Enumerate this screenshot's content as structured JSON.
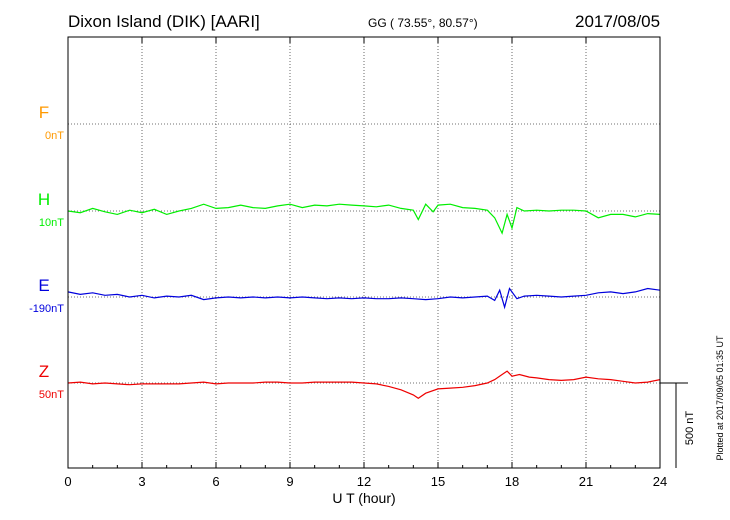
{
  "header": {
    "station": "Dixon Island (DIK)  [AARI]",
    "coords": "GG ( 73.55°,  80.57°)",
    "date": "2017/08/05"
  },
  "plotted_note": "Plotted at 2017/09/05 01:35 UT",
  "scale_label": "500 nT",
  "chart_data": {
    "type": "line",
    "xlabel": "U T (hour)",
    "xlim": [
      0,
      24
    ],
    "x_ticks": [
      "0",
      "3",
      "6",
      "9",
      "12",
      "15",
      "18",
      "21",
      "24"
    ],
    "series": [
      {
        "name": "F",
        "baseline": "0nT",
        "color": "#ff9900",
        "values": []
      },
      {
        "name": "H",
        "baseline": "10nT",
        "color": "#00ee00",
        "values": [
          [
            0,
            0
          ],
          [
            0.5,
            -10
          ],
          [
            1,
            15
          ],
          [
            1.5,
            -5
          ],
          [
            2,
            -20
          ],
          [
            2.5,
            5
          ],
          [
            3,
            -10
          ],
          [
            3.5,
            10
          ],
          [
            4,
            -20
          ],
          [
            4.5,
            0
          ],
          [
            5,
            15
          ],
          [
            5.5,
            40
          ],
          [
            6,
            15
          ],
          [
            6.5,
            20
          ],
          [
            7,
            35
          ],
          [
            7.5,
            20
          ],
          [
            8,
            15
          ],
          [
            8.5,
            30
          ],
          [
            9,
            40
          ],
          [
            9.5,
            20
          ],
          [
            10,
            35
          ],
          [
            10.5,
            30
          ],
          [
            11,
            40
          ],
          [
            11.5,
            35
          ],
          [
            12,
            30
          ],
          [
            12.5,
            25
          ],
          [
            13,
            35
          ],
          [
            13.5,
            15
          ],
          [
            14,
            5
          ],
          [
            14.2,
            -50
          ],
          [
            14.5,
            40
          ],
          [
            14.8,
            -5
          ],
          [
            15,
            35
          ],
          [
            15.5,
            40
          ],
          [
            16,
            20
          ],
          [
            16.5,
            15
          ],
          [
            17,
            5
          ],
          [
            17.3,
            -40
          ],
          [
            17.6,
            -130
          ],
          [
            17.8,
            -20
          ],
          [
            18,
            -100
          ],
          [
            18.2,
            20
          ],
          [
            18.5,
            0
          ],
          [
            19,
            5
          ],
          [
            19.5,
            0
          ],
          [
            20,
            5
          ],
          [
            20.5,
            5
          ],
          [
            21,
            0
          ],
          [
            21.5,
            -40
          ],
          [
            22,
            -20
          ],
          [
            22.5,
            -20
          ],
          [
            23,
            -35
          ],
          [
            23.5,
            -15
          ],
          [
            24,
            -20
          ]
        ]
      },
      {
        "name": "E",
        "baseline": "-190nT",
        "color": "#0000dd",
        "values": [
          [
            0,
            30
          ],
          [
            0.5,
            15
          ],
          [
            1,
            25
          ],
          [
            1.5,
            10
          ],
          [
            2,
            15
          ],
          [
            2.5,
            0
          ],
          [
            3,
            10
          ],
          [
            3.5,
            -5
          ],
          [
            4,
            5
          ],
          [
            4.5,
            0
          ],
          [
            5,
            10
          ],
          [
            5.5,
            -15
          ],
          [
            6,
            -5
          ],
          [
            6.5,
            0
          ],
          [
            7,
            -5
          ],
          [
            7.5,
            0
          ],
          [
            8,
            -5
          ],
          [
            8.5,
            0
          ],
          [
            9,
            -5
          ],
          [
            9.5,
            0
          ],
          [
            10,
            -5
          ],
          [
            10.5,
            -10
          ],
          [
            11,
            -5
          ],
          [
            11.5,
            -10
          ],
          [
            12,
            -5
          ],
          [
            12.5,
            -10
          ],
          [
            13,
            -10
          ],
          [
            13.5,
            -5
          ],
          [
            14,
            -10
          ],
          [
            14.5,
            -15
          ],
          [
            15,
            -10
          ],
          [
            15.5,
            0
          ],
          [
            16,
            -5
          ],
          [
            16.5,
            0
          ],
          [
            17,
            5
          ],
          [
            17.3,
            -20
          ],
          [
            17.5,
            40
          ],
          [
            17.7,
            -60
          ],
          [
            17.9,
            50
          ],
          [
            18.2,
            -10
          ],
          [
            18.5,
            5
          ],
          [
            19,
            10
          ],
          [
            19.5,
            5
          ],
          [
            20,
            0
          ],
          [
            20.5,
            5
          ],
          [
            21,
            10
          ],
          [
            21.5,
            25
          ],
          [
            22,
            30
          ],
          [
            22.5,
            20
          ],
          [
            23,
            30
          ],
          [
            23.5,
            50
          ],
          [
            24,
            40
          ]
        ]
      },
      {
        "name": "Z",
        "baseline": "50nT",
        "color": "#ee0000",
        "values": [
          [
            0,
            0
          ],
          [
            0.5,
            5
          ],
          [
            1,
            -5
          ],
          [
            1.5,
            0
          ],
          [
            2,
            -5
          ],
          [
            2.5,
            -10
          ],
          [
            3,
            -5
          ],
          [
            3.5,
            -5
          ],
          [
            4,
            -5
          ],
          [
            4.5,
            -5
          ],
          [
            5,
            0
          ],
          [
            5.5,
            5
          ],
          [
            6,
            -5
          ],
          [
            6.5,
            0
          ],
          [
            7,
            0
          ],
          [
            7.5,
            0
          ],
          [
            8,
            5
          ],
          [
            8.5,
            5
          ],
          [
            9,
            0
          ],
          [
            9.5,
            0
          ],
          [
            10,
            5
          ],
          [
            10.5,
            5
          ],
          [
            11,
            5
          ],
          [
            11.5,
            5
          ],
          [
            12,
            0
          ],
          [
            12.5,
            -5
          ],
          [
            13,
            -20
          ],
          [
            13.5,
            -40
          ],
          [
            14,
            -70
          ],
          [
            14.2,
            -90
          ],
          [
            14.5,
            -60
          ],
          [
            15,
            -35
          ],
          [
            15.5,
            -30
          ],
          [
            16,
            -25
          ],
          [
            16.5,
            -15
          ],
          [
            17,
            0
          ],
          [
            17.3,
            20
          ],
          [
            17.6,
            50
          ],
          [
            17.8,
            70
          ],
          [
            18,
            40
          ],
          [
            18.3,
            50
          ],
          [
            18.7,
            35
          ],
          [
            19,
            30
          ],
          [
            19.5,
            20
          ],
          [
            20,
            15
          ],
          [
            20.5,
            20
          ],
          [
            21,
            35
          ],
          [
            21.5,
            25
          ],
          [
            22,
            20
          ],
          [
            22.5,
            10
          ],
          [
            23,
            0
          ],
          [
            23.5,
            5
          ],
          [
            24,
            20
          ]
        ]
      }
    ]
  }
}
